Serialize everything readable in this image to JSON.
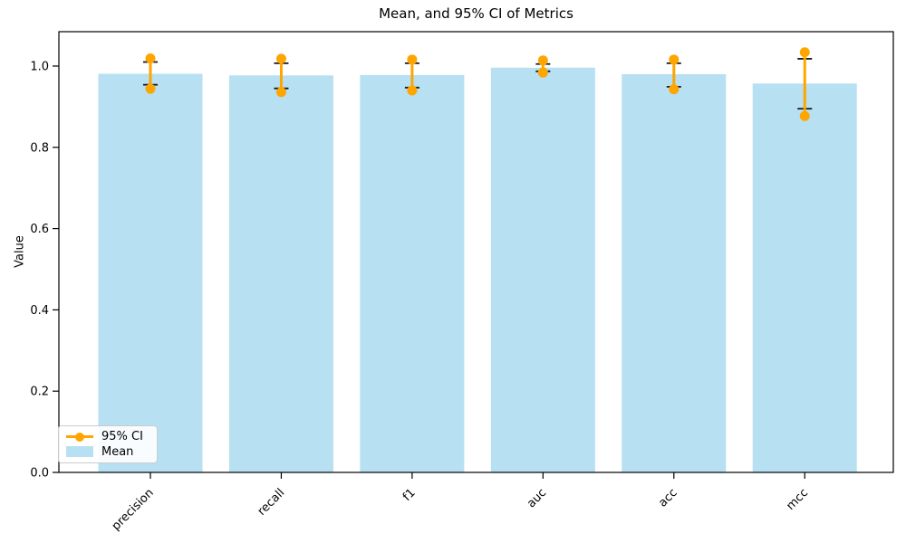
{
  "figure": {
    "title": "Mean, and 95% CI of Metrics",
    "ylabel": "Value"
  },
  "legend": {
    "items": [
      {
        "label": "95% CI",
        "type": "line-marker",
        "color": "#FFA500"
      },
      {
        "label": "Mean",
        "type": "patch",
        "color": "#B7E0F2"
      }
    ]
  },
  "chart_data": {
    "type": "bar",
    "title": "Mean, and 95% CI of Metrics",
    "xlabel": "",
    "ylabel": "Value",
    "categories": [
      "precision",
      "recall",
      "f1",
      "auc",
      "acc",
      "mcc"
    ],
    "series": [
      {
        "name": "Mean",
        "values": [
          0.981,
          0.977,
          0.978,
          0.996,
          0.98,
          0.957
        ]
      },
      {
        "name": "95% CI lower",
        "values": [
          0.944,
          0.936,
          0.94,
          0.984,
          0.943,
          0.877
        ]
      },
      {
        "name": "95% CI upper",
        "values": [
          1.019,
          1.018,
          1.016,
          1.014,
          1.016,
          1.034
        ]
      },
      {
        "name": "errorbar cap lower",
        "values": [
          0.954,
          0.945,
          0.947,
          0.987,
          0.949,
          0.895
        ]
      },
      {
        "name": "errorbar cap upper",
        "values": [
          1.01,
          1.007,
          1.007,
          1.005,
          1.007,
          1.018
        ]
      }
    ],
    "ylim": [
      0.0,
      1.085
    ],
    "yticks": [
      "0.0",
      "0.2",
      "0.4",
      "0.6",
      "0.8",
      "1.0"
    ],
    "xtick_rotation": 45,
    "grid": false,
    "legend_position": "lower left",
    "colors": {
      "bar": "#B7E0F2",
      "ci": "#FFA500",
      "errorbar": "#1a1a1a",
      "frame": "#000000"
    }
  }
}
